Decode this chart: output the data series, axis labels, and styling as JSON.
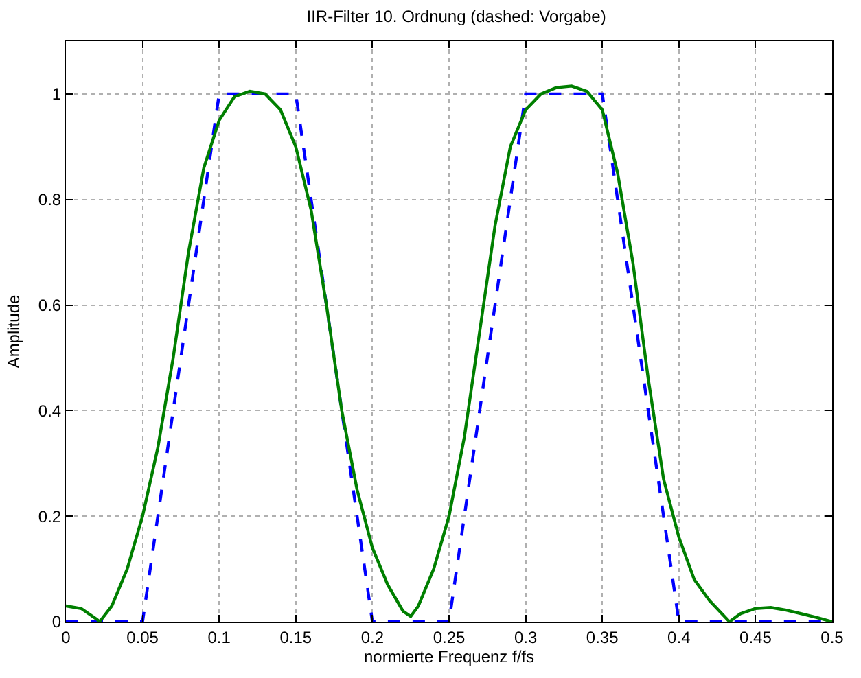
{
  "chart_data": {
    "type": "line",
    "title": "IIR-Filter 10. Ordnung (dashed: Vorgabe)",
    "xlabel": "normierte Frequenz f/fs",
    "ylabel": "Amplitude",
    "xlim": [
      0,
      0.5
    ],
    "ylim": [
      0,
      1.1
    ],
    "xticks": [
      0,
      0.05,
      0.1,
      0.15,
      0.2,
      0.25,
      0.3,
      0.35,
      0.4,
      0.45,
      0.5
    ],
    "yticks": [
      0,
      0.2,
      0.4,
      0.6,
      0.8,
      1
    ],
    "grid": true,
    "series": [
      {
        "color": "#0000ff",
        "line_style": "dashed",
        "x": [
          0,
          0.05,
          0.1,
          0.15,
          0.2,
          0.25,
          0.3,
          0.35,
          0.4,
          0.5
        ],
        "values": [
          0,
          0,
          1,
          1,
          0,
          0,
          1,
          1,
          0,
          0
        ]
      },
      {
        "color": "#007f00",
        "line_style": "solid",
        "x": [
          0,
          0.01,
          0.02,
          0.022,
          0.03,
          0.04,
          0.05,
          0.06,
          0.07,
          0.08,
          0.09,
          0.1,
          0.11,
          0.12,
          0.13,
          0.14,
          0.15,
          0.16,
          0.17,
          0.18,
          0.19,
          0.2,
          0.21,
          0.22,
          0.225,
          0.23,
          0.24,
          0.25,
          0.26,
          0.27,
          0.28,
          0.29,
          0.3,
          0.31,
          0.32,
          0.33,
          0.34,
          0.35,
          0.36,
          0.37,
          0.38,
          0.39,
          0.4,
          0.41,
          0.42,
          0.433,
          0.44,
          0.45,
          0.46,
          0.47,
          0.48,
          0.49,
          0.5
        ],
        "values": [
          0.03,
          0.025,
          0.005,
          0,
          0.03,
          0.1,
          0.2,
          0.33,
          0.5,
          0.7,
          0.86,
          0.95,
          0.995,
          1.005,
          1,
          0.97,
          0.9,
          0.78,
          0.6,
          0.4,
          0.25,
          0.14,
          0.07,
          0.02,
          0.01,
          0.03,
          0.1,
          0.2,
          0.35,
          0.55,
          0.75,
          0.9,
          0.97,
          1,
          1.012,
          1.015,
          1.005,
          0.97,
          0.85,
          0.68,
          0.46,
          0.27,
          0.16,
          0.08,
          0.04,
          0,
          0.015,
          0.025,
          0.027,
          0.022,
          0.015,
          0.008,
          0
        ]
      }
    ]
  }
}
